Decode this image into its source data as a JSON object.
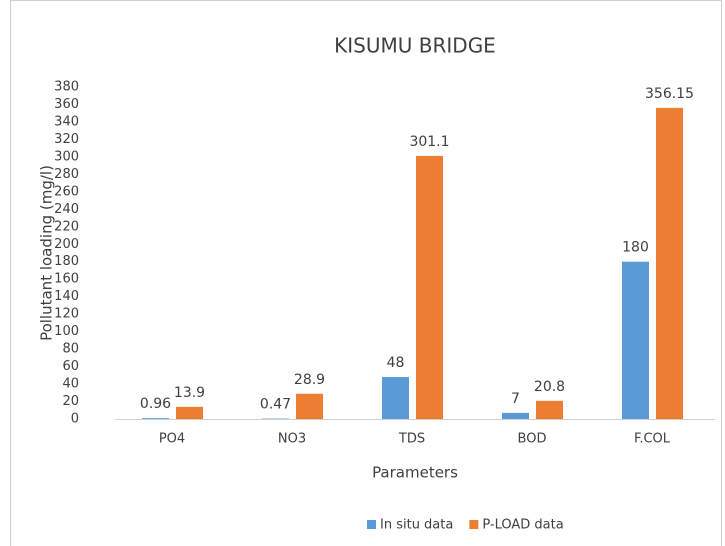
{
  "chart_data": {
    "type": "bar",
    "title": "KISUMU BRIDGE",
    "xlabel": "Parameters",
    "ylabel": "Pollutant loading (mg/l)",
    "categories": [
      "PO4",
      "NO3",
      "TDS",
      "BOD",
      "F.COL"
    ],
    "series": [
      {
        "name": "In situ data",
        "color": "#5b9bd5",
        "values": [
          0.96,
          0.47,
          48,
          7,
          180
        ]
      },
      {
        "name": "P-LOAD data",
        "color": "#ed7d31",
        "values": [
          13.9,
          28.9,
          301.1,
          20.8,
          356.15
        ]
      }
    ],
    "ylim": [
      0,
      380
    ],
    "yticks": [
      0,
      20,
      40,
      60,
      80,
      100,
      120,
      140,
      160,
      180,
      200,
      220,
      240,
      260,
      280,
      300,
      320,
      340,
      360,
      380
    ],
    "grid": false,
    "legend": "bottom"
  }
}
